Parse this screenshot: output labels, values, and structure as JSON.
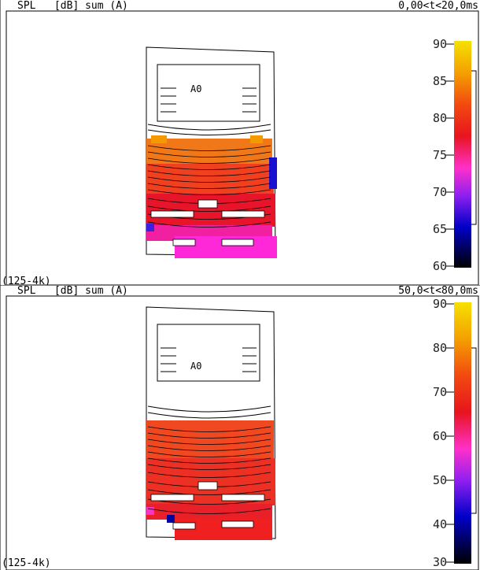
{
  "panels": [
    {
      "title": "SPL   [dB] sum (A)",
      "time_window": "0,00<t<20,0ms",
      "band": "(125-4k)",
      "source_label": "A0",
      "scale_ticks": [
        "90",
        "85",
        "80",
        "75",
        "70",
        "65",
        "60"
      ],
      "scale_colors": [
        "#f5e100",
        "#f4a000",
        "#f24a10",
        "#e8141e",
        "#ff30c8",
        "#9020f0",
        "#0000c8",
        "#000000"
      ]
    },
    {
      "title": "SPL   [dB] sum (A)",
      "time_window": "50,0<t<80,0ms",
      "band": "(125-4k)",
      "source_label": "A0",
      "scale_ticks": [
        "90",
        "80",
        "70",
        "60",
        "50",
        "40",
        "30"
      ],
      "scale_colors": [
        "#f5e100",
        "#f4a000",
        "#f24a10",
        "#e8141e",
        "#ff30c8",
        "#9020f0",
        "#0000c8",
        "#000000"
      ]
    }
  ]
}
